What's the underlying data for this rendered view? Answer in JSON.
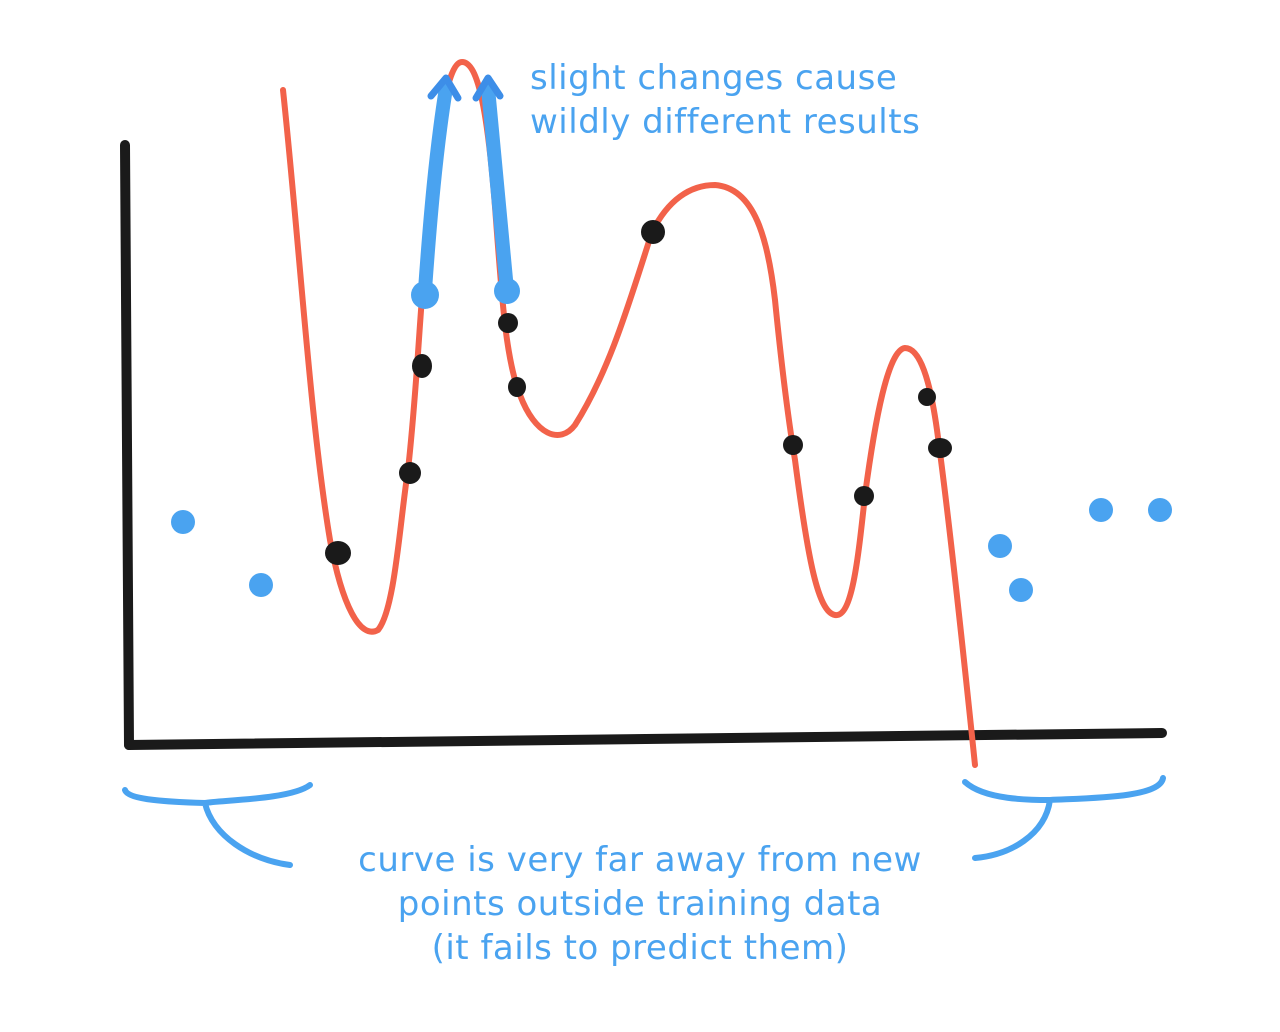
{
  "colors": {
    "axis": "#1a1a1a",
    "curve": "#f2624a",
    "training_point": "#1a1a1a",
    "highlight": "#4aa3f0"
  },
  "annotations": {
    "instability": {
      "line1": "slight changes cause",
      "line2": "wildly different results"
    },
    "extrapolation": {
      "line1": "curve is very far away from new",
      "line2": "points outside training data",
      "line3": "(it fails to predict them)"
    }
  }
}
